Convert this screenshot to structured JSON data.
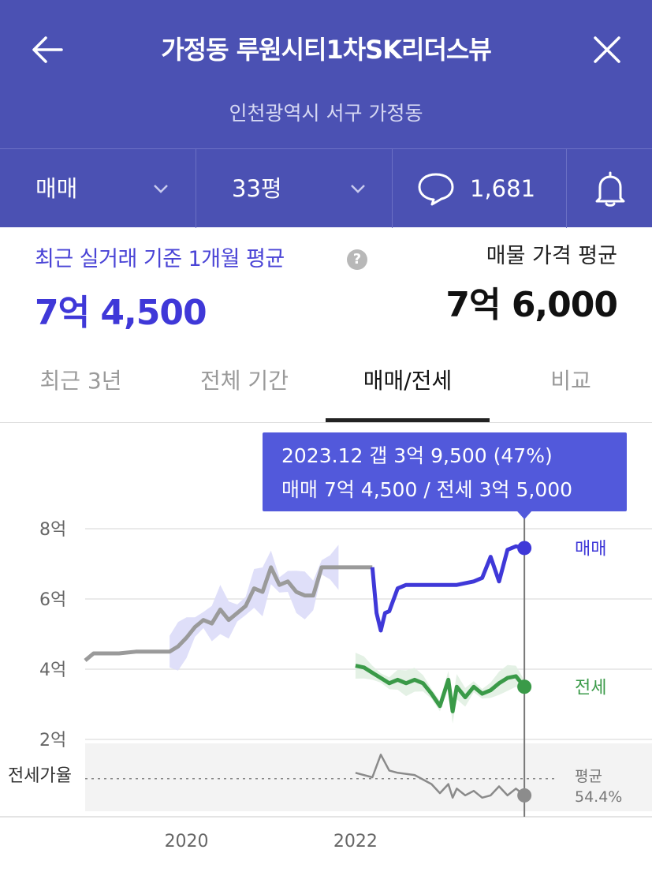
{
  "header": {
    "title": "가정동 루원시티1차SK리더스뷰",
    "subtitle": "인천광역시 서구 가정동",
    "back_icon": "arrow-left-icon",
    "close_icon": "close-icon"
  },
  "filters": {
    "deal_type": "매매",
    "size": "33평",
    "comment_count": "1,681",
    "bell_icon": "bell-icon"
  },
  "summary": {
    "recent_label": "최근 실거래 기준 1개월 평균",
    "recent_value": "7억 4,500",
    "listing_label": "매물 가격 평균",
    "listing_value": "7억 6,000"
  },
  "tabs": [
    {
      "label": "최근 3년"
    },
    {
      "label": "전체 기간"
    },
    {
      "label": "매매/전세",
      "active": true
    },
    {
      "label": "비교"
    }
  ],
  "tooltip": {
    "line1": "2023.12  갭 3억 9,500 (47%)",
    "line2": "매매 7억 4,500 / 전세 3억 5,000"
  },
  "colors": {
    "header_bg": "#4b51b3",
    "sale": "#3f38d8",
    "jeonse": "#3a9a48",
    "ratio": "#8a8a8a",
    "history": "#9a9a9a"
  },
  "chart_data": {
    "type": "line",
    "y_unit": "억",
    "y_ticks": [
      "8억",
      "6억",
      "4억",
      "2억"
    ],
    "y_tick_values": [
      8,
      6,
      4,
      2
    ],
    "ylim": [
      2,
      8
    ],
    "x_ticks": [
      "2020",
      "2022"
    ],
    "x_tick_values": [
      2020,
      2022
    ],
    "xlim": [
      2018.8,
      2024.4
    ],
    "grid": true,
    "series": [
      {
        "name": "매매",
        "label": "매매",
        "x": [
          2018.8,
          2018.9,
          2019.0,
          2019.2,
          2019.4,
          2019.6,
          2019.8,
          2019.9,
          2020.0,
          2020.1,
          2020.2,
          2020.3,
          2020.4,
          2020.5,
          2020.6,
          2020.7,
          2020.8,
          2020.9,
          2021.0,
          2021.1,
          2021.2,
          2021.3,
          2021.4,
          2021.5,
          2021.6,
          2021.7,
          2021.8,
          2021.9,
          2022.0,
          2022.1,
          2022.2
        ],
        "values": [
          4.25,
          4.45,
          4.45,
          4.45,
          4.5,
          4.5,
          4.5,
          4.65,
          4.9,
          5.2,
          5.4,
          5.3,
          5.7,
          5.4,
          5.6,
          5.8,
          6.3,
          6.2,
          6.9,
          6.4,
          6.5,
          6.2,
          6.1,
          6.1,
          6.9,
          6.9,
          6.9,
          6.9,
          6.9,
          6.9,
          6.9
        ]
      },
      {
        "name": "매매-recent",
        "x": [
          2022.2,
          2022.25,
          2022.3,
          2022.35,
          2022.4,
          2022.5,
          2022.6,
          2022.8,
          2023.0,
          2023.2,
          2023.4,
          2023.5,
          2023.6,
          2023.7,
          2023.8,
          2023.9,
          2024.0
        ],
        "values": [
          6.9,
          5.6,
          5.1,
          5.6,
          5.65,
          6.3,
          6.4,
          6.4,
          6.4,
          6.4,
          6.5,
          6.6,
          7.2,
          6.5,
          7.4,
          7.5,
          7.45
        ]
      },
      {
        "name": "전세",
        "label": "전세",
        "x": [
          2022.0,
          2022.1,
          2022.2,
          2022.3,
          2022.4,
          2022.5,
          2022.6,
          2022.7,
          2022.8,
          2022.9,
          2023.0,
          2023.1,
          2023.15,
          2023.2,
          2023.3,
          2023.4,
          2023.5,
          2023.6,
          2023.7,
          2023.8,
          2023.9,
          2024.0
        ],
        "values": [
          4.1,
          4.05,
          3.9,
          3.75,
          3.6,
          3.7,
          3.6,
          3.7,
          3.6,
          3.3,
          2.95,
          3.7,
          2.8,
          3.5,
          3.2,
          3.5,
          3.3,
          3.4,
          3.6,
          3.75,
          3.8,
          3.5
        ]
      },
      {
        "name": "전세가율",
        "label": "전세가율",
        "x": [
          2022.0,
          2022.2,
          2022.3,
          2022.4,
          2022.5,
          2022.7,
          2022.9,
          2023.0,
          2023.1,
          2023.15,
          2023.2,
          2023.3,
          2023.4,
          2023.5,
          2023.6,
          2023.7,
          2023.8,
          2023.9,
          2024.0
        ],
        "values": [
          57,
          55,
          65,
          58,
          57,
          56,
          52,
          48,
          52,
          46,
          50,
          47,
          49,
          46,
          47,
          51,
          47,
          50,
          47
        ]
      }
    ],
    "ratio_avg_label": "평균",
    "ratio_avg_value": "54.4%",
    "selected_x_label": "2023.12"
  }
}
